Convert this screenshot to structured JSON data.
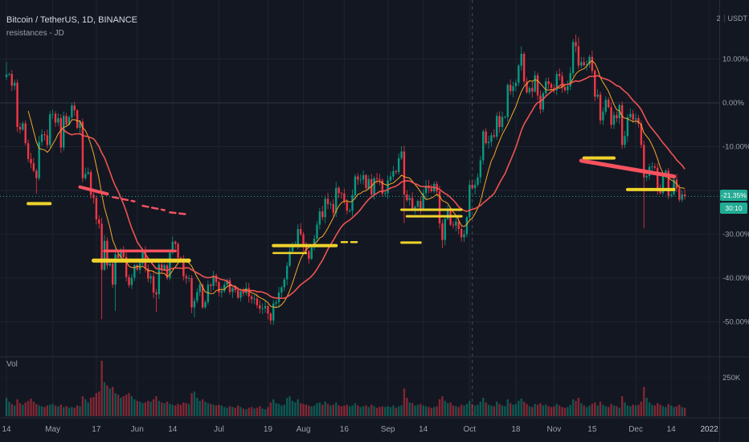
{
  "header": {
    "symbol_title": "Bitcoin / TetherUS, 1D, BINANCE",
    "indicator_label": "resistances - JD",
    "layout_count": "2",
    "quote_currency": "USDT"
  },
  "volume_pane": {
    "label": "Vol",
    "scale_label": "250K"
  },
  "price_axis": {
    "labels": [
      {
        "pct": 10,
        "label": "10.00%"
      },
      {
        "pct": 0,
        "label": "0.00%"
      },
      {
        "pct": -10,
        "label": "-10.00%"
      },
      {
        "pct": -30,
        "label": "-30.00%"
      },
      {
        "pct": -40,
        "label": "-40.00%"
      },
      {
        "pct": -50,
        "label": "-50.00%"
      }
    ],
    "current_badge": {
      "text": "-21.35%",
      "countdown": "30:10",
      "color": "#22ab94"
    }
  },
  "time_axis": {
    "ticks": [
      {
        "day": 0,
        "label": "14"
      },
      {
        "day": 17,
        "label": "May"
      },
      {
        "day": 33,
        "label": "17"
      },
      {
        "day": 48,
        "label": "Jun"
      },
      {
        "day": 61,
        "label": "14"
      },
      {
        "day": 78,
        "label": "Jul"
      },
      {
        "day": 96,
        "label": "19"
      },
      {
        "day": 109,
        "label": "Aug"
      },
      {
        "day": 124,
        "label": "16"
      },
      {
        "day": 140,
        "label": "Sep"
      },
      {
        "day": 153,
        "label": "14"
      },
      {
        "day": 170,
        "label": "Oct"
      },
      {
        "day": 187,
        "label": "18"
      },
      {
        "day": 201,
        "label": "Nov"
      },
      {
        "day": 215,
        "label": "15"
      },
      {
        "day": 231,
        "label": "Dec"
      },
      {
        "day": 244,
        "label": "14"
      },
      {
        "day": 258,
        "label": "2022",
        "strong": true
      }
    ]
  },
  "colors": {
    "background": "#131722",
    "grid": "#1e2330",
    "grid_zero": "#2c3342",
    "up": "#089981",
    "down": "#f23645",
    "accent": "#22ab94",
    "axis_text": "#9aa0ab",
    "axis_text_strong": "#c3c8d4",
    "divider": "#2a2e39",
    "vline": "#454c5c",
    "level_yellow": "#efd32c",
    "level_red": "#f7525f"
  },
  "chart_data": {
    "type": "candlestick",
    "title": "Bitcoin / TetherUS, 1D, BINANCE",
    "exchange": "BINANCE",
    "interval": "1D",
    "scale": "percent",
    "ylim": [
      -57.8,
      23.5
    ],
    "y_gridlines_pct": [
      10,
      0,
      -10,
      -20,
      -30,
      -40,
      -50
    ],
    "current_value_pct": -21.35,
    "vertical_line_day": 171,
    "volume_grid_k": 250,
    "first_open": 5.9,
    "closes": [
      6.5,
      6.6,
      3.9,
      4.6,
      -5.5,
      -6.1,
      -4.7,
      -9.2,
      -12.8,
      -13.8,
      -15.5,
      -17.2,
      -8.9,
      -7.2,
      -7.4,
      -9.6,
      -2.6,
      -2.5,
      -4.5,
      -3.5,
      -10.2,
      -3.0,
      -4.9,
      -3.3,
      -0.6,
      -1.7,
      -5.7,
      -4.3,
      -17.2,
      -16.2,
      -15.8,
      -21.0,
      -21.7,
      -26.6,
      -27.6,
      -38.1,
      -31.5,
      -37.1,
      -36.7,
      -41.5,
      -34.6,
      -35.4,
      -33.7,
      -35.2,
      -39.8,
      -41.6,
      -39.9,
      -37.1,
      -38.1,
      -36.6,
      -33.9,
      -37.8,
      -40.1,
      -39.6,
      -43.3,
      -43.7,
      -36.9,
      -38.1,
      -37.1,
      -40.0,
      -34.2,
      -31.7,
      -32.2,
      -35.4,
      -35.7,
      -39.6,
      -40.1,
      -40.0,
      -46.7,
      -45.2,
      -43.2,
      -41.5,
      -46.7,
      -45.5,
      -41.5,
      -41.8,
      -39.4,
      -40.9,
      -43.3,
      -43.0,
      -41.5,
      -40.5,
      -43.2,
      -42.3,
      -42.8,
      -44.5,
      -43.0,
      -43.5,
      -42.3,
      -44.2,
      -44.8,
      -44.7,
      -46.2,
      -47.0,
      -46.9,
      -46.4,
      -48.1,
      -49.7,
      -45.8,
      -45.5,
      -43.3,
      -42.1,
      -40.3,
      -37.2,
      -33.9,
      -32.5,
      -32.5,
      -28.8,
      -30.0,
      -32.7,
      -33.9,
      -35.6,
      -33.0,
      -31.0,
      -27.8,
      -24.8,
      -26.1,
      -21.9,
      -23.1,
      -23.1,
      -25.1,
      -19.4,
      -20.6,
      -20.7,
      -22.6,
      -24.6,
      -24.6,
      -21.1,
      -16.8,
      -17.5,
      -17.5,
      -16.5,
      -19.5,
      -17.4,
      -20.9,
      -17.2,
      -17.4,
      -17.7,
      -20.7,
      -20.6,
      -17.7,
      -16.8,
      -15.6,
      -15.8,
      -12.6,
      -11.1,
      -20.9,
      -22.2,
      -21.7,
      -24.2,
      -23.7,
      -22.4,
      -24.2,
      -20.6,
      -18.9,
      -19.5,
      -20.2,
      -18.5,
      -20.2,
      -27.5,
      -31.3,
      -26.5,
      -24.2,
      -27.8,
      -28.0,
      -27.1,
      -28.8,
      -30.7,
      -30.0,
      -26.1,
      -18.7,
      -19.5,
      -18.7,
      -17.0,
      -13.1,
      -6.5,
      -9.2,
      -8.9,
      -7.4,
      -7.7,
      -3.0,
      -5.5,
      -3.2,
      -3.2,
      4.1,
      2.7,
      3.8,
      4.6,
      8.5,
      11.2,
      4.9,
      2.4,
      3.4,
      2.6,
      6.3,
      1.7,
      -1.5,
      2.2,
      4.9,
      4.3,
      3.4,
      2.9,
      6.6,
      6.1,
      3.6,
      2.9,
      3.8,
      6.8,
      13.9,
      12.9,
      8.5,
      9.3,
      8.6,
      8.8,
      10.5,
      7.3,
      1.4,
      1.9,
      -4.0,
      -2.0,
      0.7,
      -1.0,
      -5.0,
      -2.8,
      -3.5,
      -0.5,
      -9.6,
      -7.6,
      -3.3,
      -2.5,
      -3.8,
      -3.5,
      -4.7,
      -9.6,
      -17.0,
      -16.7,
      -14.6,
      -14.5,
      -14.8,
      -19.7,
      -20.6,
      -16.7,
      -15.5,
      -21.2,
      -20.9,
      -17.5,
      -19.5,
      -22.1,
      -20.9,
      -21.35
    ],
    "volumes_k": [
      120,
      95,
      80,
      70,
      110,
      85,
      75,
      90,
      100,
      115,
      95,
      80,
      70,
      65,
      60,
      70,
      75,
      80,
      70,
      65,
      75,
      60,
      65,
      55,
      60,
      55,
      70,
      65,
      130,
      110,
      90,
      120,
      125,
      150,
      160,
      360,
      220,
      200,
      180,
      190,
      150,
      140,
      120,
      130,
      140,
      150,
      130,
      110,
      100,
      95,
      85,
      90,
      100,
      95,
      110,
      130,
      100,
      90,
      85,
      95,
      80,
      75,
      70,
      80,
      75,
      90,
      85,
      80,
      150,
      160,
      120,
      100,
      110,
      95,
      85,
      80,
      75,
      70,
      75,
      70,
      60,
      55,
      65,
      60,
      55,
      70,
      60,
      50,
      45,
      55,
      60,
      50,
      55,
      65,
      50,
      45,
      60,
      90,
      110,
      85,
      80,
      70,
      75,
      120,
      130,
      100,
      90,
      110,
      85,
      80,
      75,
      70,
      65,
      70,
      85,
      90,
      75,
      95,
      80,
      70,
      75,
      90,
      70,
      65,
      70,
      75,
      65,
      70,
      85,
      70,
      60,
      65,
      70,
      60,
      75,
      65,
      55,
      60,
      65,
      60,
      65,
      60,
      70,
      55,
      65,
      70,
      180,
      120,
      90,
      85,
      70,
      75,
      80,
      70,
      65,
      60,
      55,
      60,
      65,
      110,
      130,
      100,
      85,
      90,
      70,
      65,
      60,
      75,
      70,
      80,
      100,
      80,
      70,
      75,
      95,
      120,
      90,
      75,
      70,
      65,
      95,
      80,
      70,
      65,
      110,
      85,
      75,
      80,
      100,
      115,
      95,
      80,
      65,
      60,
      80,
      75,
      85,
      70,
      75,
      65,
      60,
      65,
      80,
      70,
      60,
      55,
      60,
      75,
      110,
      100,
      120,
      85,
      70,
      60,
      70,
      80,
      90,
      70,
      95,
      75,
      65,
      60,
      80,
      70,
      65,
      55,
      130,
      90,
      70,
      65,
      75,
      70,
      75,
      95,
      190,
      120,
      90,
      75,
      70,
      85,
      75,
      65,
      60,
      80,
      70,
      60,
      65,
      75,
      60,
      55
    ],
    "wick_overrides": {
      "0": {
        "h": 9.3
      },
      "11": {
        "l": -20.7
      },
      "35": {
        "l": -49.4
      },
      "40": {
        "l": -47.5
      },
      "55": {
        "l": -47.7
      },
      "69": {
        "l": -49.0
      },
      "97": {
        "l": -50.6
      },
      "146": {
        "l": -27.5
      },
      "160": {
        "l": -33.2
      },
      "189": {
        "h": 12.9
      },
      "208": {
        "h": 14.6
      },
      "209": {
        "h": 15.6
      },
      "210": {
        "h": 15.0
      },
      "234": {
        "l": -28.6
      }
    },
    "moving_averages": [
      {
        "window": 9,
        "color": "#f7a62b",
        "width": 1
      },
      {
        "window": 21,
        "color": "#ef5350",
        "width": 1.6
      }
    ],
    "resistance_segments": [
      {
        "color": "yellow",
        "d0": 8,
        "d1": 16,
        "p0": -23.0,
        "w": 4
      },
      {
        "color": "red",
        "d0": 27,
        "d1": 37,
        "p0": -19.2,
        "p1": -20.8,
        "w": 4
      },
      {
        "color": "red",
        "d0": 39,
        "d1": 47,
        "p0": -21.5,
        "p1": -22.5,
        "w": 2.5,
        "dash": true
      },
      {
        "color": "red",
        "d0": 50,
        "d1": 58,
        "p0": -23.5,
        "p1": -24.5,
        "w": 2.5,
        "dash": true
      },
      {
        "color": "red",
        "d0": 60,
        "d1": 67,
        "p0": -25.0,
        "p1": -25.5,
        "w": 2.5,
        "dash": true
      },
      {
        "color": "yellow",
        "d0": 32,
        "d1": 67,
        "p0": -36.0,
        "w": 5
      },
      {
        "color": "red",
        "d0": 36,
        "d1": 62,
        "p0": -33.8,
        "w": 3.5
      },
      {
        "color": "yellow",
        "d0": 98,
        "d1": 121,
        "p0": -32.6,
        "w": 4
      },
      {
        "color": "yellow",
        "d0": 98,
        "d1": 110,
        "p0": -34.3,
        "w": 2.5
      },
      {
        "color": "yellow",
        "d0": 123,
        "d1": 129,
        "p0": -31.8,
        "w": 2.5,
        "dash": true
      },
      {
        "color": "yellow",
        "d0": 145,
        "d1": 167,
        "p0": -24.4,
        "w": 3
      },
      {
        "color": "yellow",
        "d0": 147,
        "d1": 167,
        "p0": -25.9,
        "w": 3
      },
      {
        "color": "yellow",
        "d0": 145,
        "d1": 152,
        "p0": -31.9,
        "w": 3
      },
      {
        "color": "yellow",
        "d0": 212,
        "d1": 223,
        "p0": -12.6,
        "w": 4
      },
      {
        "color": "red",
        "d0": 211,
        "d1": 245,
        "p0": -13.2,
        "p1": -16.8,
        "w": 5
      },
      {
        "color": "yellow",
        "d0": 228,
        "d1": 245,
        "p0": -19.8,
        "w": 4
      }
    ]
  }
}
